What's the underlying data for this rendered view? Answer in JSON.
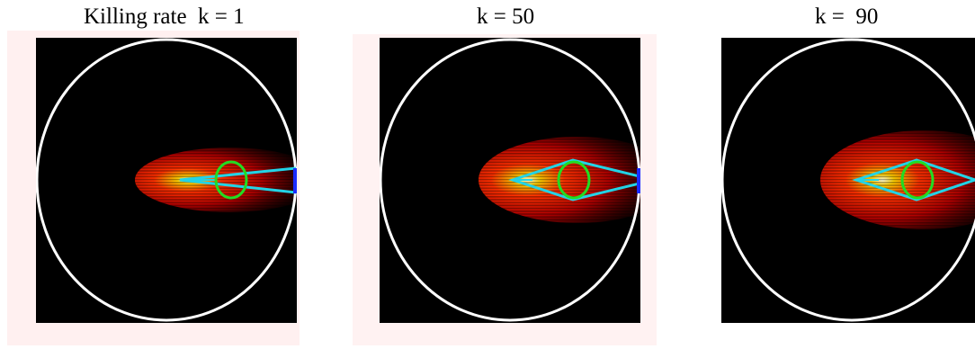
{
  "colors": {
    "background": "#000000",
    "boundary": "#ffffff",
    "cone": "#22d3e6",
    "inner_circle": "#22dd22",
    "window_marker": "#1a2bff",
    "backdrop_tint": "#fff2f2",
    "heat": [
      "#ffffe0",
      "#ffd000",
      "#ff3000",
      "#b00000",
      "#3a0000"
    ]
  },
  "panels": [
    {
      "id": "panel-k1",
      "title": "Killing rate  k = 1",
      "k": 1,
      "cone_spread": "narrow",
      "window_marker": true
    },
    {
      "id": "panel-k50",
      "title": "k = 50",
      "k": 50,
      "cone_spread": "wide",
      "window_marker": true
    },
    {
      "id": "panel-k90",
      "title": "k =  90",
      "k": 90,
      "cone_spread": "wide",
      "window_marker": false
    }
  ]
}
